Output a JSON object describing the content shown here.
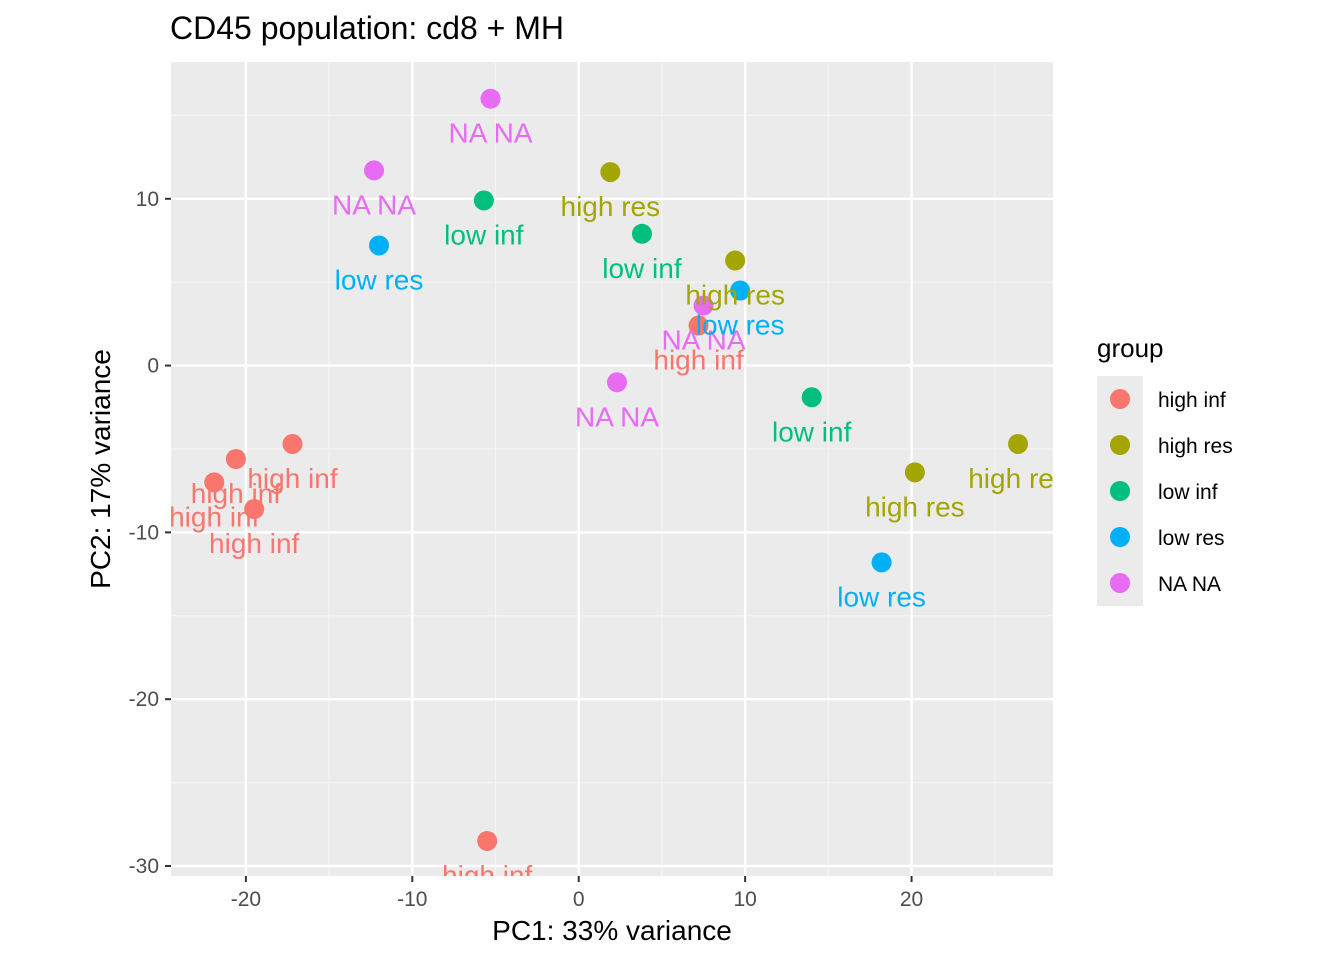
{
  "chart_data": {
    "type": "scatter",
    "title": "CD45 population: cd8 + MH",
    "xlabel": "PC1: 33% variance",
    "ylabel": "PC2: 17% variance",
    "xlim": [
      -24.5,
      28.5
    ],
    "ylim": [
      -30.6,
      18.2
    ],
    "x_ticks": [
      -20,
      -10,
      0,
      10,
      20
    ],
    "x_tick_labels": [
      "-20",
      "-10",
      "0",
      "10",
      "20"
    ],
    "y_ticks": [
      10,
      0,
      -10,
      -20,
      -30
    ],
    "y_tick_labels": [
      "10",
      "0",
      "-10",
      "-20",
      "-30"
    ],
    "grid": true,
    "legend_position": "right",
    "legend_title": "group",
    "groups": [
      {
        "name": "high inf",
        "color": "#F8766D"
      },
      {
        "name": "high res",
        "color": "#A3A500"
      },
      {
        "name": "low inf",
        "color": "#00BF7D"
      },
      {
        "name": "low res",
        "color": "#00B0F6"
      },
      {
        "name": "NA NA",
        "color": "#E76BF3"
      }
    ],
    "points": [
      {
        "x": -5.3,
        "y": 16.0,
        "group": "NA NA"
      },
      {
        "x": -12.3,
        "y": 11.7,
        "group": "NA NA"
      },
      {
        "x": 2.3,
        "y": -1.0,
        "group": "NA NA"
      },
      {
        "x": 7.5,
        "y": 3.6,
        "group": "NA NA"
      },
      {
        "x": 1.9,
        "y": 11.6,
        "group": "high res"
      },
      {
        "x": 9.4,
        "y": 6.3,
        "group": "high res"
      },
      {
        "x": 20.2,
        "y": -6.4,
        "group": "high res"
      },
      {
        "x": 26.4,
        "y": -4.7,
        "group": "high res"
      },
      {
        "x": -5.7,
        "y": 9.9,
        "group": "low inf"
      },
      {
        "x": 3.8,
        "y": 7.9,
        "group": "low inf"
      },
      {
        "x": 14.0,
        "y": -1.9,
        "group": "low inf"
      },
      {
        "x": -12.0,
        "y": 7.2,
        "group": "low res"
      },
      {
        "x": 9.7,
        "y": 4.5,
        "group": "low res"
      },
      {
        "x": 18.2,
        "y": -11.8,
        "group": "low res"
      },
      {
        "x": 7.2,
        "y": 2.4,
        "group": "high inf"
      },
      {
        "x": -17.2,
        "y": -4.7,
        "group": "high inf"
      },
      {
        "x": -20.6,
        "y": -5.6,
        "group": "high inf"
      },
      {
        "x": -21.9,
        "y": -7.0,
        "group": "high inf"
      },
      {
        "x": -19.5,
        "y": -8.6,
        "group": "high inf"
      },
      {
        "x": -5.5,
        "y": -28.5,
        "group": "high inf"
      }
    ]
  }
}
